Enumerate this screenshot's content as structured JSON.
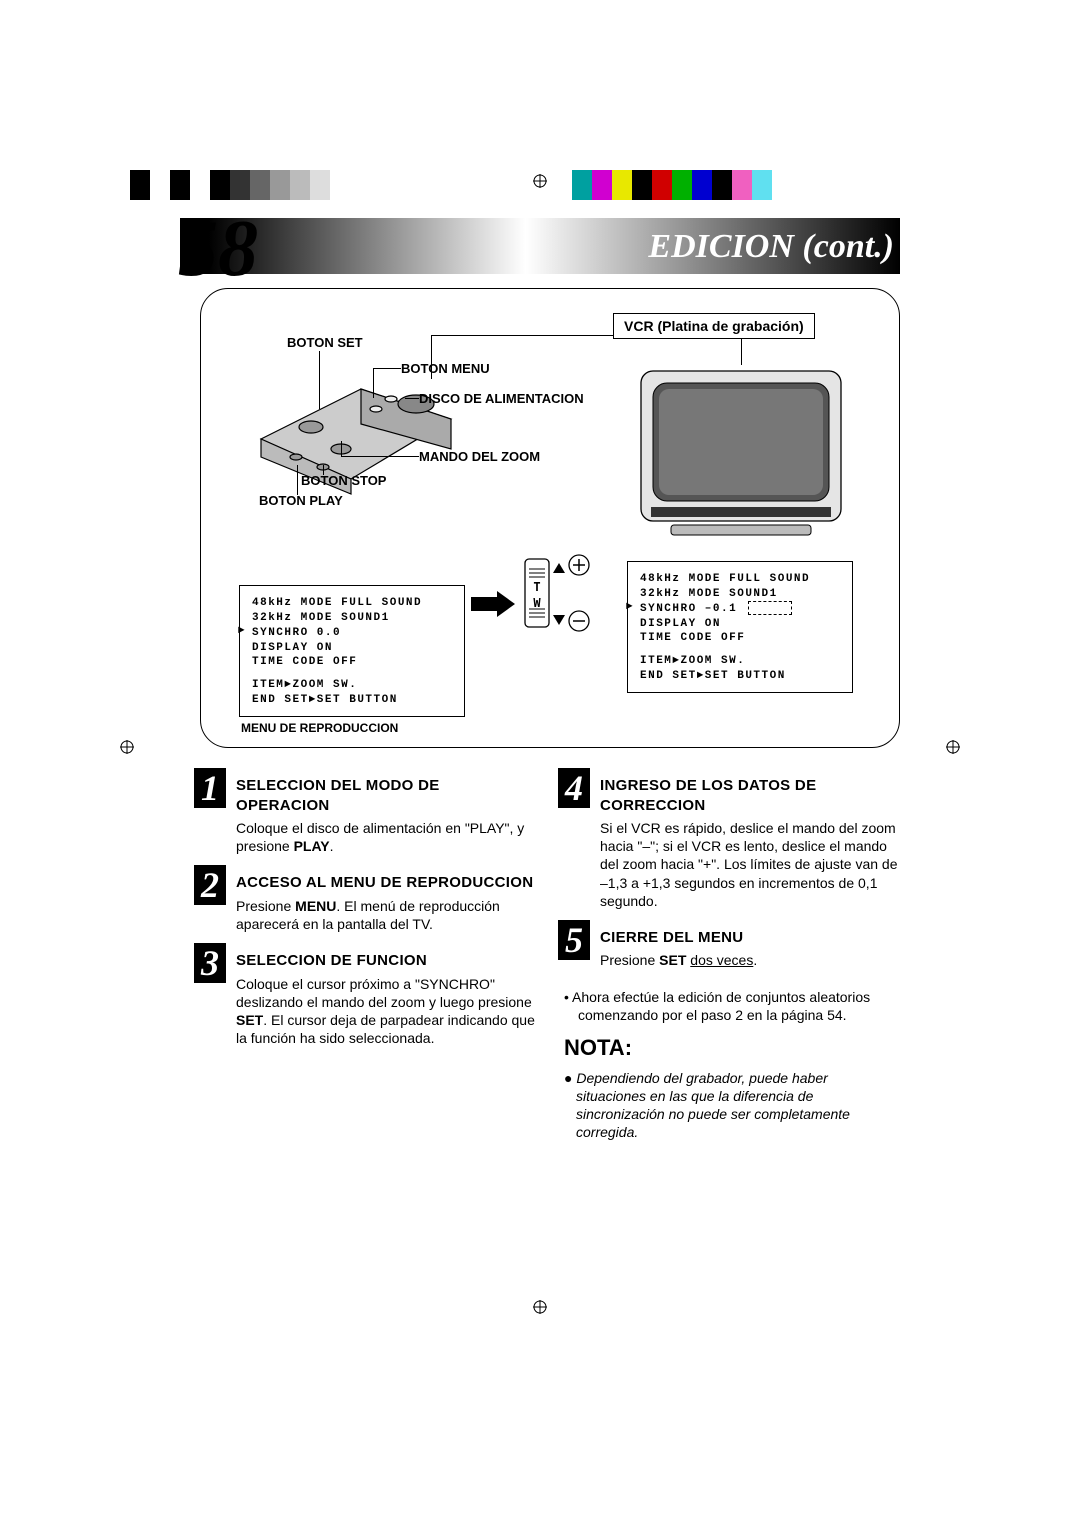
{
  "colorbars": {
    "left": [
      "#000000",
      "#ffffff",
      "#000000",
      "#ffffff",
      "#000000",
      "#333333",
      "#666666",
      "#999999",
      "#bbbbbb",
      "#dddddd"
    ],
    "right": [
      "#00a0a0",
      "#d000d0",
      "#e8e800",
      "#000000",
      "#d00000",
      "#00b000",
      "#0000d0",
      "#000000",
      "#f060c0",
      "#60e0f0"
    ]
  },
  "page": {
    "number": "58",
    "title": "EDICION (cont.)"
  },
  "figure": {
    "vcr_label": "VCR (Platina de grabación)",
    "callouts": {
      "boton_set": "BOTON SET",
      "boton_menu": "BOTON MENU",
      "disco": "DISCO DE ALIMENTACION",
      "mando_zoom": "MANDO DEL ZOOM",
      "boton_stop": "BOTON STOP",
      "boton_play": "BOTON PLAY"
    },
    "menu_left": {
      "lines": [
        "48kHz MODE  FULL SOUND",
        "32kHz MODE  SOUND1",
        "SYNCHRO     0.0",
        "DISPLAY     ON",
        "TIME CODE   OFF",
        "",
        "     ITEM►ZOOM SW.",
        "END  SET►SET BUTTON"
      ],
      "caption": "MENU DE REPRODUCCION",
      "arrow_row": 2
    },
    "menu_right": {
      "lines": [
        "48kHz MODE  FULL SOUND",
        "32kHz MODE  SOUND1",
        "SYNCHRO     –0.1",
        "DISPLAY     ON",
        "TIME CODE   OFF",
        "",
        "     ITEM►ZOOM SW.",
        "END  SET►SET BUTTON"
      ],
      "arrow_row": 2
    },
    "zoom": {
      "t": "T",
      "w": "W",
      "plus": "+",
      "minus": "–"
    }
  },
  "steps_left": [
    {
      "num": "1",
      "title": "SELECCION DEL MODO DE OPERACION",
      "body_parts": [
        "Coloque el disco de alimentación en \"PLAY\", y presione ",
        {
          "bold": "PLAY"
        },
        "."
      ]
    },
    {
      "num": "2",
      "title": "ACCESO AL MENU DE REPRODUCCION",
      "body_parts": [
        "Presione ",
        {
          "bold": "MENU"
        },
        ". El menú de reproducción aparecerá en la pantalla del TV."
      ]
    },
    {
      "num": "3",
      "title": "SELECCION DE FUNCION",
      "body_parts": [
        "Coloque el cursor próximo a \"SYNCHRO\" deslizando el mando del zoom y luego presione ",
        {
          "bold": "SET"
        },
        ". El cursor deja de parpadear indicando que la función ha sido seleccionada."
      ]
    }
  ],
  "steps_right": [
    {
      "num": "4",
      "title": "INGRESO DE LOS DATOS DE CORRECCION",
      "body_parts": [
        "Si el VCR es rápido, deslice el mando del zoom hacia \"–\"; si el VCR es lento, deslice el mando del zoom hacia \"+\". Los límites de ajuste van de –1,3 a +1,3 segundos en incrementos de 0,1 segundo."
      ]
    },
    {
      "num": "5",
      "title": "CIERRE DEL MENU",
      "body_parts": [
        "Presione ",
        {
          "bold": "SET"
        },
        " ",
        {
          "underline": "dos veces"
        },
        "."
      ]
    }
  ],
  "bullet_after_5": "Ahora efectúe la edición de conjuntos aleatorios comenzando por el paso 2 en la página 54.",
  "nota": {
    "heading": "NOTA:",
    "body": "Dependiendo del grabador, puede haber situaciones en las que la diferencia de sincronización no puede ser completamente corregida."
  }
}
